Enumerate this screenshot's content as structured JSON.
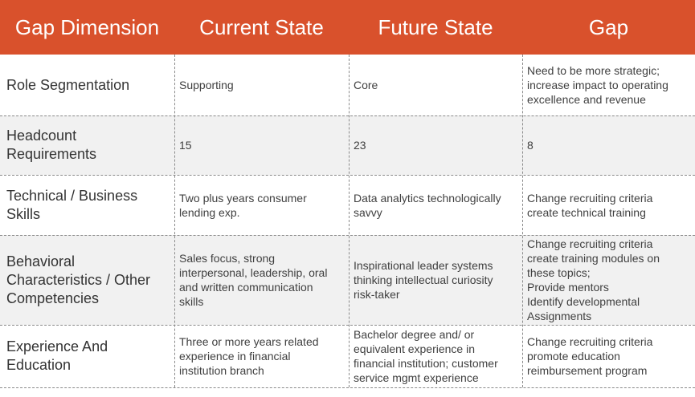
{
  "header": {
    "col_dimension": "Gap Dimension",
    "col_current": "Current State",
    "col_future": "Future State",
    "col_gap": "Gap"
  },
  "rows": [
    {
      "dimension": "Role Segmentation",
      "current": "Supporting",
      "future": "Core",
      "gap": "Need to be more strategic;\nincrease impact to operating\nexcellence and revenue"
    },
    {
      "dimension": "Headcount\nRequirements",
      "current": "15",
      "future": "23",
      "gap": "8"
    },
    {
      "dimension": "Technical / Business\nSkills",
      "current": "Two plus years consumer\nlending exp.",
      "future": "Data analytics technologically\nsavvy",
      "gap": "Change recruiting criteria\ncreate technical training"
    },
    {
      "dimension": "Behavioral\nCharacteristics / Other\nCompetencies",
      "current": "Sales focus, strong\ninterpersonal, leadership, oral\nand written communication\nskills",
      "future": "Inspirational leader systems\nthinking intellectual curiosity\nrisk-taker",
      "gap": "Change recruiting criteria\ncreate training modules on\nthese topics;\nProvide mentors\nIdentify developmental\nAssignments"
    },
    {
      "dimension": "Experience And\nEducation",
      "current": "Three or more years related\nexperience in financial\ninstitution branch",
      "future": "Bachelor degree and/ or\nequivalent experience in\nfinancial institution; customer\nservice mgmt experience",
      "gap": "Change recruiting criteria\npromote education\nreimbursement program"
    }
  ],
  "colors": {
    "header_bg": "#d9512c",
    "header_text": "#ffffff",
    "row_shade": "#f1f1f1",
    "row_plain": "#ffffff",
    "divider": "#8a8a8a"
  }
}
